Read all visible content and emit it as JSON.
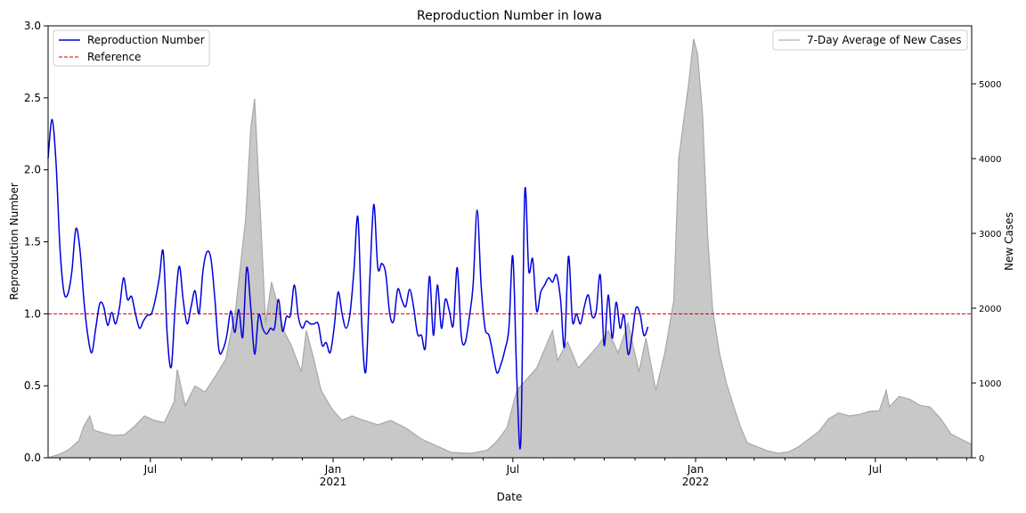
{
  "chart_data": {
    "type": "line",
    "title": "Reproduction Number in Iowa",
    "xlabel": "Date",
    "ylabel": "Reproduction Number",
    "y2label": "New Cases",
    "x_range": [
      "2020-03-20",
      "2022-10-06"
    ],
    "ylim": [
      0,
      3.0
    ],
    "y2lim": [
      0,
      5775
    ],
    "x_ticks": [
      {
        "date": "2020-07-01",
        "label": "Jul",
        "sublabel": ""
      },
      {
        "date": "2021-01-01",
        "label": "Jan",
        "sublabel": "2021"
      },
      {
        "date": "2021-07-01",
        "label": "Jul",
        "sublabel": ""
      },
      {
        "date": "2022-01-01",
        "label": "Jan",
        "sublabel": "2022"
      },
      {
        "date": "2022-07-01",
        "label": "Jul",
        "sublabel": ""
      }
    ],
    "y_ticks": [
      "0.0",
      "0.5",
      "1.0",
      "1.5",
      "2.0",
      "2.5",
      "3.0"
    ],
    "y2_ticks": [
      "0",
      "1000",
      "2000",
      "3000",
      "4000",
      "5000"
    ],
    "grid": false,
    "legend_left": {
      "position": "top-left",
      "entries": [
        {
          "label": "Reproduction Number",
          "color": "#0000dd",
          "style": "solid"
        },
        {
          "label": "Reference",
          "color": "#cc0000",
          "style": "dashed"
        }
      ]
    },
    "legend_right": {
      "position": "top-right",
      "entries": [
        {
          "label": "7-Day Average of New Cases",
          "color": "#bdbdbd",
          "style": "solid"
        }
      ]
    },
    "reference_line": {
      "y": 1.0,
      "color": "#cc0000"
    },
    "series": [
      {
        "name": "Reproduction Number",
        "axis": "left",
        "color": "#0000dd",
        "points": [
          [
            "2020-03-20",
            2.08
          ],
          [
            "2020-03-24",
            2.35
          ],
          [
            "2020-03-28",
            2.05
          ],
          [
            "2020-04-01",
            1.45
          ],
          [
            "2020-04-05",
            1.15
          ],
          [
            "2020-04-09",
            1.14
          ],
          [
            "2020-04-13",
            1.3
          ],
          [
            "2020-04-17",
            1.59
          ],
          [
            "2020-04-21",
            1.45
          ],
          [
            "2020-04-25",
            1.1
          ],
          [
            "2020-04-29",
            0.85
          ],
          [
            "2020-05-03",
            0.73
          ],
          [
            "2020-05-07",
            0.9
          ],
          [
            "2020-05-11",
            1.07
          ],
          [
            "2020-05-15",
            1.05
          ],
          [
            "2020-05-19",
            0.92
          ],
          [
            "2020-05-23",
            1.01
          ],
          [
            "2020-05-27",
            0.93
          ],
          [
            "2020-05-31",
            1.05
          ],
          [
            "2020-06-04",
            1.25
          ],
          [
            "2020-06-08",
            1.1
          ],
          [
            "2020-06-12",
            1.12
          ],
          [
            "2020-06-16",
            1.0
          ],
          [
            "2020-06-20",
            0.9
          ],
          [
            "2020-06-24",
            0.95
          ],
          [
            "2020-06-28",
            0.99
          ],
          [
            "2020-07-02",
            1.0
          ],
          [
            "2020-07-06",
            1.1
          ],
          [
            "2020-07-10",
            1.25
          ],
          [
            "2020-07-14",
            1.43
          ],
          [
            "2020-07-18",
            0.85
          ],
          [
            "2020-07-22",
            0.63
          ],
          [
            "2020-07-26",
            1.05
          ],
          [
            "2020-07-30",
            1.33
          ],
          [
            "2020-08-03",
            1.1
          ],
          [
            "2020-08-07",
            0.93
          ],
          [
            "2020-08-11",
            1.05
          ],
          [
            "2020-08-15",
            1.16
          ],
          [
            "2020-08-19",
            1.0
          ],
          [
            "2020-08-23",
            1.3
          ],
          [
            "2020-08-27",
            1.43
          ],
          [
            "2020-08-31",
            1.38
          ],
          [
            "2020-09-04",
            1.1
          ],
          [
            "2020-09-08",
            0.75
          ],
          [
            "2020-09-12",
            0.75
          ],
          [
            "2020-09-16",
            0.85
          ],
          [
            "2020-09-20",
            1.02
          ],
          [
            "2020-09-24",
            0.87
          ],
          [
            "2020-09-28",
            1.03
          ],
          [
            "2020-10-02",
            0.84
          ],
          [
            "2020-10-06",
            1.32
          ],
          [
            "2020-10-10",
            1.05
          ],
          [
            "2020-10-14",
            0.72
          ],
          [
            "2020-10-18",
            0.99
          ],
          [
            "2020-10-22",
            0.9
          ],
          [
            "2020-10-26",
            0.86
          ],
          [
            "2020-10-30",
            0.9
          ],
          [
            "2020-11-03",
            0.9
          ],
          [
            "2020-11-07",
            1.1
          ],
          [
            "2020-11-11",
            0.88
          ],
          [
            "2020-11-15",
            0.98
          ],
          [
            "2020-11-19",
            0.99
          ],
          [
            "2020-11-23",
            1.2
          ],
          [
            "2020-11-27",
            0.98
          ],
          [
            "2020-12-01",
            0.9
          ],
          [
            "2020-12-05",
            0.95
          ],
          [
            "2020-12-09",
            0.93
          ],
          [
            "2020-12-13",
            0.93
          ],
          [
            "2020-12-17",
            0.93
          ],
          [
            "2020-12-21",
            0.78
          ],
          [
            "2020-12-25",
            0.8
          ],
          [
            "2020-12-29",
            0.73
          ],
          [
            "2021-01-02",
            0.9
          ],
          [
            "2021-01-06",
            1.15
          ],
          [
            "2021-01-10",
            1.0
          ],
          [
            "2021-01-14",
            0.9
          ],
          [
            "2021-01-18",
            1.0
          ],
          [
            "2021-01-22",
            1.3
          ],
          [
            "2021-01-26",
            1.67
          ],
          [
            "2021-01-30",
            0.9
          ],
          [
            "2021-02-03",
            0.6
          ],
          [
            "2021-02-07",
            1.25
          ],
          [
            "2021-02-11",
            1.76
          ],
          [
            "2021-02-15",
            1.32
          ],
          [
            "2021-02-19",
            1.35
          ],
          [
            "2021-02-23",
            1.28
          ],
          [
            "2021-02-27",
            1.0
          ],
          [
            "2021-03-03",
            0.95
          ],
          [
            "2021-03-07",
            1.17
          ],
          [
            "2021-03-11",
            1.1
          ],
          [
            "2021-03-15",
            1.05
          ],
          [
            "2021-03-19",
            1.17
          ],
          [
            "2021-03-23",
            1.05
          ],
          [
            "2021-03-27",
            0.86
          ],
          [
            "2021-03-31",
            0.85
          ],
          [
            "2021-04-04",
            0.77
          ],
          [
            "2021-04-08",
            1.26
          ],
          [
            "2021-04-12",
            0.85
          ],
          [
            "2021-04-16",
            1.2
          ],
          [
            "2021-04-20",
            0.9
          ],
          [
            "2021-04-24",
            1.1
          ],
          [
            "2021-04-28",
            1.02
          ],
          [
            "2021-05-02",
            0.92
          ],
          [
            "2021-05-06",
            1.32
          ],
          [
            "2021-05-10",
            0.85
          ],
          [
            "2021-05-14",
            0.8
          ],
          [
            "2021-05-18",
            0.97
          ],
          [
            "2021-05-22",
            1.2
          ],
          [
            "2021-05-26",
            1.72
          ],
          [
            "2021-05-30",
            1.2
          ],
          [
            "2021-06-03",
            0.9
          ],
          [
            "2021-06-07",
            0.85
          ],
          [
            "2021-06-11",
            0.72
          ],
          [
            "2021-06-15",
            0.59
          ],
          [
            "2021-06-19",
            0.65
          ],
          [
            "2021-06-23",
            0.75
          ],
          [
            "2021-06-27",
            0.9
          ],
          [
            "2021-07-01",
            1.4
          ],
          [
            "2021-07-05",
            0.55
          ],
          [
            "2021-07-09",
            0.12
          ],
          [
            "2021-07-13",
            1.84
          ],
          [
            "2021-07-17",
            1.3
          ],
          [
            "2021-07-21",
            1.38
          ],
          [
            "2021-07-25",
            1.02
          ],
          [
            "2021-07-29",
            1.15
          ],
          [
            "2021-08-02",
            1.2
          ],
          [
            "2021-08-06",
            1.25
          ],
          [
            "2021-08-10",
            1.22
          ],
          [
            "2021-08-14",
            1.27
          ],
          [
            "2021-08-18",
            1.1
          ],
          [
            "2021-08-22",
            0.77
          ],
          [
            "2021-08-26",
            1.4
          ],
          [
            "2021-08-30",
            0.95
          ],
          [
            "2021-09-03",
            1.0
          ],
          [
            "2021-09-07",
            0.93
          ],
          [
            "2021-09-11",
            1.05
          ],
          [
            "2021-09-15",
            1.13
          ],
          [
            "2021-09-19",
            0.98
          ],
          [
            "2021-09-23",
            1.02
          ],
          [
            "2021-09-27",
            1.27
          ],
          [
            "2021-10-01",
            0.78
          ],
          [
            "2021-10-05",
            1.13
          ],
          [
            "2021-10-09",
            0.83
          ],
          [
            "2021-10-13",
            1.08
          ],
          [
            "2021-10-17",
            0.9
          ],
          [
            "2021-10-21",
            0.99
          ],
          [
            "2021-10-25",
            0.72
          ],
          [
            "2021-10-29",
            0.85
          ],
          [
            "2021-11-02",
            1.04
          ],
          [
            "2021-11-06",
            1.0
          ],
          [
            "2021-11-10",
            0.85
          ],
          [
            "2021-11-14",
            0.91
          ]
        ]
      },
      {
        "name": "7-Day Average of New Cases",
        "axis": "right",
        "color": "#bdbdbd",
        "fill": "#c8c8c8",
        "points": [
          [
            "2020-03-20",
            0
          ],
          [
            "2020-04-01",
            50
          ],
          [
            "2020-04-10",
            110
          ],
          [
            "2020-04-20",
            230
          ],
          [
            "2020-04-25",
            420
          ],
          [
            "2020-05-01",
            560
          ],
          [
            "2020-05-05",
            370
          ],
          [
            "2020-05-15",
            330
          ],
          [
            "2020-05-25",
            300
          ],
          [
            "2020-06-05",
            310
          ],
          [
            "2020-06-15",
            420
          ],
          [
            "2020-06-25",
            560
          ],
          [
            "2020-07-05",
            500
          ],
          [
            "2020-07-15",
            470
          ],
          [
            "2020-07-25",
            750
          ],
          [
            "2020-07-28",
            1180
          ],
          [
            "2020-08-05",
            700
          ],
          [
            "2020-08-15",
            960
          ],
          [
            "2020-08-25",
            880
          ],
          [
            "2020-09-05",
            1100
          ],
          [
            "2020-09-15",
            1320
          ],
          [
            "2020-09-25",
            2000
          ],
          [
            "2020-10-05",
            3200
          ],
          [
            "2020-10-10",
            4400
          ],
          [
            "2020-10-14",
            4800
          ],
          [
            "2020-10-20",
            3200
          ],
          [
            "2020-10-25",
            1800
          ],
          [
            "2020-10-31",
            2350
          ],
          [
            "2020-11-05",
            2100
          ],
          [
            "2020-11-12",
            1700
          ],
          [
            "2020-11-20",
            1500
          ],
          [
            "2020-11-30",
            1150
          ],
          [
            "2020-12-05",
            1700
          ],
          [
            "2020-12-12",
            1350
          ],
          [
            "2020-12-20",
            900
          ],
          [
            "2020-12-31",
            650
          ],
          [
            "2021-01-10",
            500
          ],
          [
            "2021-01-20",
            560
          ],
          [
            "2021-02-01",
            500
          ],
          [
            "2021-02-15",
            440
          ],
          [
            "2021-02-28",
            500
          ],
          [
            "2021-03-15",
            400
          ],
          [
            "2021-03-31",
            250
          ],
          [
            "2021-04-15",
            160
          ],
          [
            "2021-04-30",
            70
          ],
          [
            "2021-05-20",
            60
          ],
          [
            "2021-06-05",
            100
          ],
          [
            "2021-06-15",
            220
          ],
          [
            "2021-06-25",
            400
          ],
          [
            "2021-07-05",
            900
          ],
          [
            "2021-07-15",
            1050
          ],
          [
            "2021-07-25",
            1200
          ],
          [
            "2021-08-05",
            1550
          ],
          [
            "2021-08-10",
            1700
          ],
          [
            "2021-08-15",
            1300
          ],
          [
            "2021-08-25",
            1550
          ],
          [
            "2021-09-05",
            1200
          ],
          [
            "2021-09-15",
            1350
          ],
          [
            "2021-09-25",
            1500
          ],
          [
            "2021-10-05",
            1700
          ],
          [
            "2021-10-15",
            1400
          ],
          [
            "2021-10-25",
            1800
          ],
          [
            "2021-11-05",
            1150
          ],
          [
            "2021-11-12",
            1600
          ],
          [
            "2021-11-22",
            900
          ],
          [
            "2021-12-01",
            1400
          ],
          [
            "2021-12-10",
            2100
          ],
          [
            "2021-12-15",
            4000
          ],
          [
            "2021-12-20",
            4500
          ],
          [
            "2021-12-25",
            5000
          ],
          [
            "2021-12-30",
            5600
          ],
          [
            "2022-01-03",
            5400
          ],
          [
            "2022-01-08",
            4600
          ],
          [
            "2022-01-13",
            3000
          ],
          [
            "2022-01-18",
            2000
          ],
          [
            "2022-01-25",
            1400
          ],
          [
            "2022-02-01",
            1000
          ],
          [
            "2022-02-08",
            700
          ],
          [
            "2022-02-15",
            420
          ],
          [
            "2022-02-22",
            200
          ],
          [
            "2022-03-05",
            140
          ],
          [
            "2022-03-15",
            90
          ],
          [
            "2022-03-25",
            60
          ],
          [
            "2022-04-05",
            80
          ],
          [
            "2022-04-15",
            150
          ],
          [
            "2022-04-25",
            250
          ],
          [
            "2022-05-05",
            350
          ],
          [
            "2022-05-15",
            520
          ],
          [
            "2022-05-25",
            600
          ],
          [
            "2022-06-05",
            560
          ],
          [
            "2022-06-15",
            580
          ],
          [
            "2022-06-25",
            620
          ],
          [
            "2022-07-05",
            630
          ],
          [
            "2022-07-12",
            900
          ],
          [
            "2022-07-15",
            680
          ],
          [
            "2022-07-25",
            820
          ],
          [
            "2022-08-05",
            780
          ],
          [
            "2022-08-15",
            700
          ],
          [
            "2022-08-25",
            680
          ],
          [
            "2022-09-05",
            520
          ],
          [
            "2022-09-15",
            320
          ],
          [
            "2022-09-25",
            250
          ],
          [
            "2022-10-06",
            180
          ]
        ]
      }
    ]
  }
}
